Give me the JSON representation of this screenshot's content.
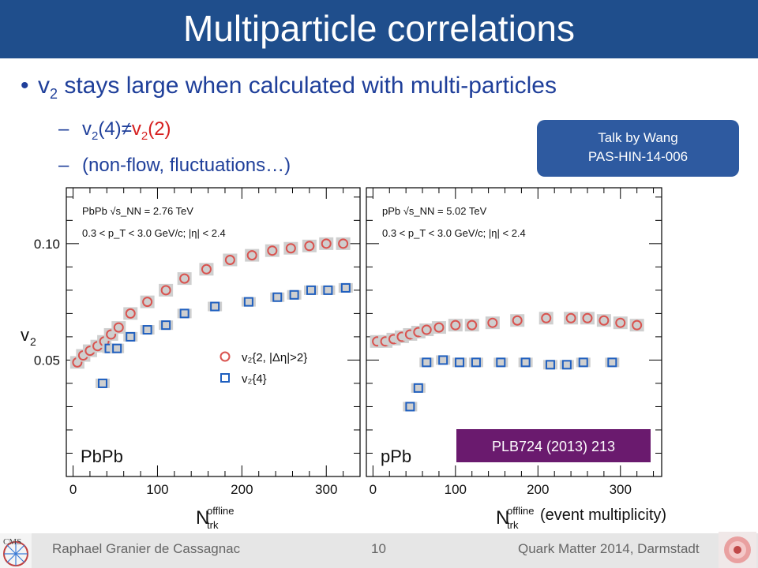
{
  "title": "Multiparticle correlations",
  "bullet": {
    "pre": "v",
    "sub": "2",
    "post": " stays large when calculated with multi-particles"
  },
  "sub1": {
    "dash": "–",
    "a": "v",
    "a_sub": "2",
    "a_post": "(4)",
    "neq": "≠",
    "b": "v",
    "b_sub": "2",
    "b_post": "(2)"
  },
  "sub2": {
    "dash": "–",
    "text": "(non-flow,  fluctuations…)"
  },
  "talk_box": {
    "line1": "Talk by Wang",
    "line2": "PAS-HIN-14-006"
  },
  "plb_box": "PLB724 (2013) 213",
  "colors": {
    "title_bg": "#1f4e8c",
    "text_blue": "#1f3f9a",
    "red": "#d62020",
    "blue_marker": "#1f5fbf",
    "red_marker": "#d9534f",
    "plb_bg": "#6a1a6e"
  },
  "footer": {
    "left": "Raphael Granier de Cassagnac",
    "page": "10",
    "right": "Quark Matter 2014, Darmstadt"
  },
  "chart_data": [
    {
      "type": "scatter",
      "panel_label": "PbPb",
      "energy": "PbPb √s_NN = 2.76 TeV",
      "cuts": "0.3 < p_T < 3.0 GeV/c; |η| < 2.4",
      "ylabel": "v2",
      "xlabel": "N_trk^offline",
      "xlim": [
        -8,
        340
      ],
      "ylim": [
        0.0,
        0.124
      ],
      "xticks": [
        0,
        100,
        200,
        300
      ],
      "yticks": [
        0.05,
        0.1
      ],
      "legend": [
        "v2{2, |Δη|>2}",
        "v2{4}"
      ],
      "series": [
        {
          "name": "v2{2, |Δη|>2}",
          "x": [
            5,
            12,
            20,
            29,
            37,
            45,
            54,
            68,
            88,
            110,
            132,
            158,
            186,
            212,
            236,
            258,
            280,
            300,
            320
          ],
          "y": [
            0.049,
            0.052,
            0.054,
            0.056,
            0.058,
            0.061,
            0.064,
            0.07,
            0.075,
            0.08,
            0.085,
            0.089,
            0.093,
            0.095,
            0.097,
            0.098,
            0.099,
            0.1,
            0.1
          ]
        },
        {
          "name": "v2{4}",
          "x": [
            35,
            43,
            52,
            68,
            88,
            110,
            132,
            168,
            208,
            242,
            262,
            282,
            302,
            323
          ],
          "y": [
            0.04,
            0.055,
            0.055,
            0.06,
            0.063,
            0.065,
            0.07,
            0.073,
            0.075,
            0.077,
            0.078,
            0.08,
            0.08,
            0.081
          ]
        }
      ]
    },
    {
      "type": "scatter",
      "panel_label": "pPb",
      "energy": "pPb √s_NN = 5.02 TeV",
      "cuts": "0.3 < p_T < 3.0 GeV/c; |η| < 2.4",
      "xlabel": "N_trk^offline (event multiplicity)",
      "xlim": [
        -8,
        350
      ],
      "ylim": [
        0.0,
        0.124
      ],
      "xticks": [
        0,
        100,
        200,
        300
      ],
      "series": [
        {
          "name": "v2{2, |Δη|>2}",
          "x": [
            5,
            15,
            25,
            35,
            45,
            55,
            65,
            80,
            100,
            120,
            145,
            175,
            210,
            240,
            260,
            280,
            300,
            320
          ],
          "y": [
            0.058,
            0.058,
            0.059,
            0.06,
            0.061,
            0.062,
            0.063,
            0.064,
            0.065,
            0.065,
            0.066,
            0.067,
            0.068,
            0.068,
            0.068,
            0.067,
            0.066,
            0.065
          ]
        },
        {
          "name": "v2{4}",
          "x": [
            45,
            55,
            65,
            85,
            105,
            125,
            155,
            185,
            215,
            235,
            255,
            290
          ],
          "y": [
            0.03,
            0.038,
            0.049,
            0.05,
            0.049,
            0.049,
            0.049,
            0.049,
            0.048,
            0.048,
            0.049,
            0.049
          ]
        }
      ]
    }
  ]
}
